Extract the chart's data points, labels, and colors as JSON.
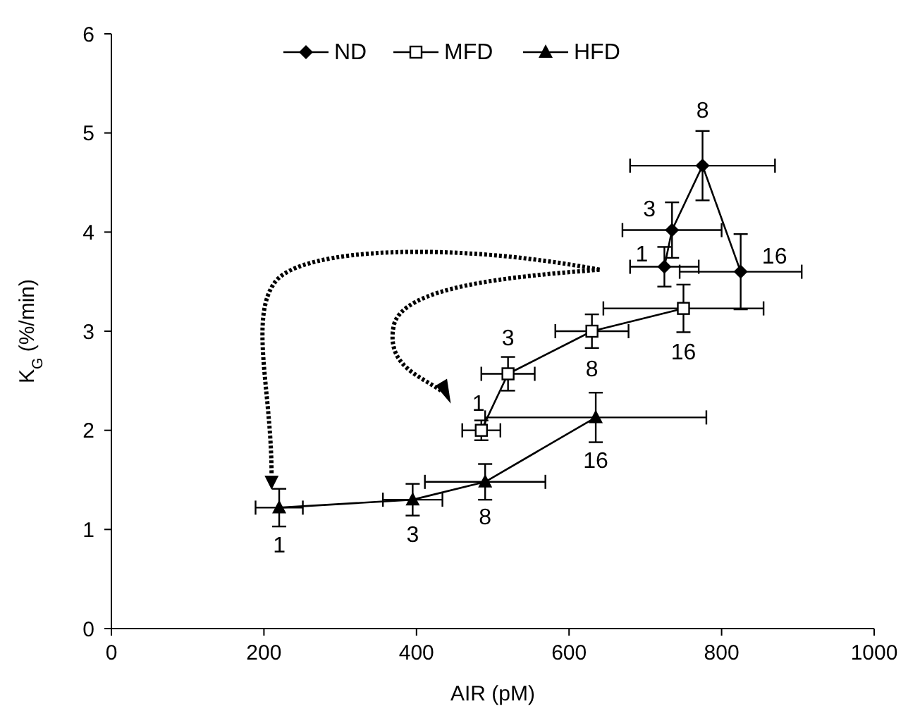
{
  "chart_data": {
    "type": "line",
    "xlabel": "AIR (pM)",
    "ylabel": "K$_{G}$ (%/min)",
    "xlim": [
      0,
      1000
    ],
    "xticks": [
      0,
      200,
      400,
      600,
      800,
      1000
    ],
    "ylim": [
      0,
      6
    ],
    "yticks": [
      0,
      1,
      2,
      3,
      4,
      5,
      6
    ],
    "grid": false,
    "legend": "top",
    "line_style": "solid",
    "series": [
      {
        "name": "ND",
        "color": "#000000",
        "marker": "diamond",
        "x": [
          725,
          735,
          775,
          825
        ],
        "values": [
          3.65,
          4.02,
          4.67,
          3.6
        ],
        "xerrors": [
          45,
          65,
          95,
          80
        ],
        "errors": [
          0.2,
          0.28,
          0.35,
          0.38
        ]
      },
      {
        "name": "MFD",
        "color": "#000000",
        "marker": "square",
        "x": [
          485,
          520,
          630,
          750
        ],
        "values": [
          2.0,
          2.57,
          3.0,
          3.23
        ],
        "xerrors": [
          25,
          35,
          48,
          105
        ],
        "errors": [
          0.1,
          0.17,
          0.17,
          0.24
        ]
      },
      {
        "name": "HFD",
        "color": "#000000",
        "marker": "triangle",
        "x": [
          220,
          395,
          490,
          635
        ],
        "values": [
          1.22,
          1.3,
          1.48,
          2.13
        ],
        "xerrors": [
          31,
          39,
          79,
          145
        ],
        "errors": [
          0.19,
          0.16,
          0.18,
          0.25
        ]
      }
    ],
    "annotations": [
      {
        "text": "1",
        "x": 725,
        "y": 3.65
      },
      {
        "text": "3",
        "x": 735,
        "y": 4.02
      },
      {
        "text": "8",
        "x": 775,
        "y": 4.67
      },
      {
        "text": "16",
        "x": 825,
        "y": 3.6
      },
      {
        "text": "1",
        "x": 485,
        "y": 2.0
      },
      {
        "text": "3",
        "x": 520,
        "y": 2.57
      },
      {
        "text": "8",
        "x": 630,
        "y": 3.0
      },
      {
        "text": "16",
        "x": 750,
        "y": 3.23
      },
      {
        "text": "1",
        "x": 220,
        "y": 1.22
      },
      {
        "text": "3",
        "x": 395,
        "y": 1.3
      },
      {
        "text": "8",
        "x": 490,
        "y": 1.48
      },
      {
        "text": "16",
        "x": 635,
        "y": 2.13
      }
    ]
  }
}
